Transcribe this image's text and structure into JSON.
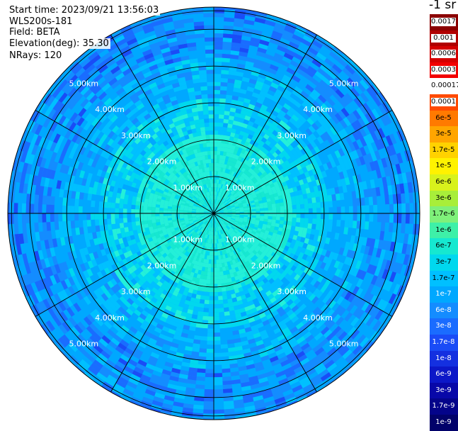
{
  "info": {
    "start_time": "Start time: 2023/09/21 13:56:03",
    "station": "WLS200s-181",
    "field": "Field: BETA",
    "elevation": "Elevation(deg): 35.30",
    "nrays": "NRays: 120"
  },
  "colorbar": {
    "unit_title": "-1 sr",
    "items": [
      {
        "label": "0.0017",
        "color": "#8b0000",
        "boxed": true
      },
      {
        "label": "0.001",
        "color": "#b00000",
        "boxed": true
      },
      {
        "label": "0.0006",
        "color": "#d40000",
        "boxed": true
      },
      {
        "label": "0.0003",
        "color": "#f20000",
        "boxed": true
      },
      {
        "label": "0.00017",
        "color": "#ffffff",
        "boxed": false
      },
      {
        "label": "0.0001",
        "color": "#ff4a00",
        "boxed": true
      },
      {
        "label": "6e-5",
        "color": "#ff7a00",
        "boxed": false
      },
      {
        "label": "3e-5",
        "color": "#ffa500",
        "boxed": false
      },
      {
        "label": "1.7e-5",
        "color": "#ffd200",
        "boxed": false
      },
      {
        "label": "1e-5",
        "color": "#fff200",
        "boxed": false
      },
      {
        "label": "6e-6",
        "color": "#d8f21c",
        "boxed": false
      },
      {
        "label": "3e-6",
        "color": "#a8ee3a",
        "boxed": false
      },
      {
        "label": "1.7e-6",
        "color": "#7ff07a",
        "boxed": false
      },
      {
        "label": "1e-6",
        "color": "#3ef0a8",
        "boxed": false
      },
      {
        "label": "6e-7",
        "color": "#16e8d0",
        "boxed": false
      },
      {
        "label": "3e-7",
        "color": "#00d8ee",
        "boxed": false
      },
      {
        "label": "1.7e-7",
        "color": "#00c0ff",
        "boxed": false
      },
      {
        "label": "1e-7",
        "color": "#00a8ff",
        "boxed": false
      },
      {
        "label": "6e-8",
        "color": "#148cff",
        "boxed": false
      },
      {
        "label": "3e-8",
        "color": "#1a6cff",
        "boxed": false
      },
      {
        "label": "1.7e-8",
        "color": "#1a4cf6",
        "boxed": false
      },
      {
        "label": "1e-8",
        "color": "#1430e0",
        "boxed": false
      },
      {
        "label": "6e-9",
        "color": "#0c18c8",
        "boxed": false
      },
      {
        "label": "3e-9",
        "color": "#0808a8",
        "boxed": false
      },
      {
        "label": "1.7e-9",
        "color": "#04048a",
        "boxed": false
      },
      {
        "label": "1e-9",
        "color": "#02026a",
        "boxed": false
      }
    ]
  },
  "range_labels": [
    "1.00km",
    "2.00km",
    "3.00km",
    "4.00km",
    "5.00km"
  ],
  "ring_ranges_km": [
    1,
    2,
    3,
    4,
    5,
    5.5
  ],
  "max_range_km": 5.6,
  "ray_count": 120,
  "spoke_azimuths_deg": [
    0,
    30,
    60,
    90,
    120,
    150,
    180,
    210,
    240,
    270,
    300,
    330
  ],
  "label_azimuths_deg": [
    45,
    135,
    225,
    315
  ],
  "field_colors": {
    "near": "#24f0d8",
    "mid": "#00d0ee",
    "far": "#00a8ff",
    "edge": "#1a6cff",
    "line": "#000000",
    "range_label": "#ffffff"
  }
}
